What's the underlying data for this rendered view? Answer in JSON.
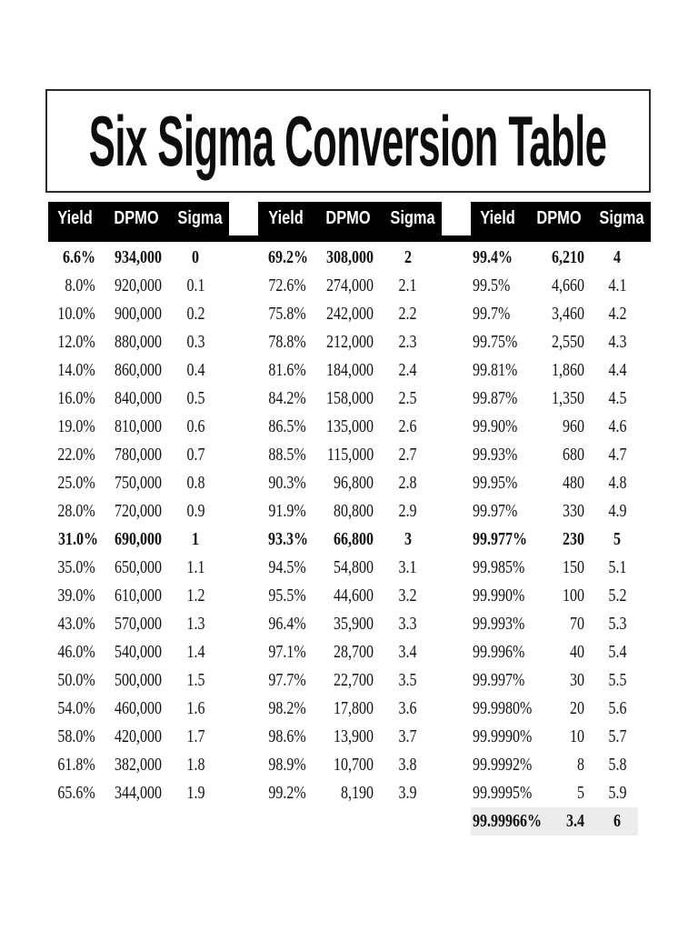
{
  "title": "Six Sigma Conversion Table",
  "colors": {
    "header_bg": "#000000",
    "header_text": "#ffffff",
    "highlight_row_bg": "#ececec",
    "body_text": "#121212"
  },
  "table": {
    "headers": [
      "Yield",
      "DPMO",
      "Sigma"
    ],
    "groups": [
      {
        "name": "sigma-0-to-1.9",
        "rows": [
          {
            "y": "6.6%",
            "d": "934,000",
            "s": "0",
            "b": true
          },
          {
            "y": "8.0%",
            "d": "920,000",
            "s": "0.1"
          },
          {
            "y": "10.0%",
            "d": "900,000",
            "s": "0.2"
          },
          {
            "y": "12.0%",
            "d": "880,000",
            "s": "0.3"
          },
          {
            "y": "14.0%",
            "d": "860,000",
            "s": "0.4"
          },
          {
            "y": "16.0%",
            "d": "840,000",
            "s": "0.5"
          },
          {
            "y": "19.0%",
            "d": "810,000",
            "s": "0.6"
          },
          {
            "y": "22.0%",
            "d": "780,000",
            "s": "0.7"
          },
          {
            "y": "25.0%",
            "d": "750,000",
            "s": "0.8"
          },
          {
            "y": "28.0%",
            "d": "720,000",
            "s": "0.9"
          },
          {
            "y": "31.0%",
            "d": "690,000",
            "s": "1",
            "b": true
          },
          {
            "y": "35.0%",
            "d": "650,000",
            "s": "1.1"
          },
          {
            "y": "39.0%",
            "d": "610,000",
            "s": "1.2"
          },
          {
            "y": "43.0%",
            "d": "570,000",
            "s": "1.3"
          },
          {
            "y": "46.0%",
            "d": "540,000",
            "s": "1.4"
          },
          {
            "y": "50.0%",
            "d": "500,000",
            "s": "1.5"
          },
          {
            "y": "54.0%",
            "d": "460,000",
            "s": "1.6"
          },
          {
            "y": "58.0%",
            "d": "420,000",
            "s": "1.7"
          },
          {
            "y": "61.8%",
            "d": "382,000",
            "s": "1.8"
          },
          {
            "y": "65.6%",
            "d": "344,000",
            "s": "1.9"
          }
        ]
      },
      {
        "name": "sigma-2-to-3.9",
        "rows": [
          {
            "y": "69.2%",
            "d": "308,000",
            "s": "2",
            "b": true
          },
          {
            "y": "72.6%",
            "d": "274,000",
            "s": "2.1"
          },
          {
            "y": "75.8%",
            "d": "242,000",
            "s": "2.2"
          },
          {
            "y": "78.8%",
            "d": "212,000",
            "s": "2.3"
          },
          {
            "y": "81.6%",
            "d": "184,000",
            "s": "2.4"
          },
          {
            "y": "84.2%",
            "d": "158,000",
            "s": "2.5"
          },
          {
            "y": "86.5%",
            "d": "135,000",
            "s": "2.6"
          },
          {
            "y": "88.5%",
            "d": "115,000",
            "s": "2.7"
          },
          {
            "y": "90.3%",
            "d": "96,800",
            "s": "2.8"
          },
          {
            "y": "91.9%",
            "d": "80,800",
            "s": "2.9"
          },
          {
            "y": "93.3%",
            "d": "66,800",
            "s": "3",
            "b": true
          },
          {
            "y": "94.5%",
            "d": "54,800",
            "s": "3.1"
          },
          {
            "y": "95.5%",
            "d": "44,600",
            "s": "3.2"
          },
          {
            "y": "96.4%",
            "d": "35,900",
            "s": "3.3"
          },
          {
            "y": "97.1%",
            "d": "28,700",
            "s": "3.4"
          },
          {
            "y": "97.7%",
            "d": "22,700",
            "s": "3.5"
          },
          {
            "y": "98.2%",
            "d": "17,800",
            "s": "3.6"
          },
          {
            "y": "98.6%",
            "d": "13,900",
            "s": "3.7"
          },
          {
            "y": "98.9%",
            "d": "10,700",
            "s": "3.8"
          },
          {
            "y": "99.2%",
            "d": "8,190",
            "s": "3.9"
          }
        ]
      },
      {
        "name": "sigma-4-to-6",
        "rows": [
          {
            "y": "99.4%",
            "d": "6,210",
            "s": "4",
            "b": true
          },
          {
            "y": "99.5%",
            "d": "4,660",
            "s": "4.1"
          },
          {
            "y": "99.7%",
            "d": "3,460",
            "s": "4.2"
          },
          {
            "y": "99.75%",
            "d": "2,550",
            "s": "4.3"
          },
          {
            "y": "99.81%",
            "d": "1,860",
            "s": "4.4"
          },
          {
            "y": "99.87%",
            "d": "1,350",
            "s": "4.5"
          },
          {
            "y": "99.90%",
            "d": "960",
            "s": "4.6"
          },
          {
            "y": "99.93%",
            "d": "680",
            "s": "4.7"
          },
          {
            "y": "99.95%",
            "d": "480",
            "s": "4.8"
          },
          {
            "y": "99.97%",
            "d": "330",
            "s": "4.9"
          },
          {
            "y": "99.977%",
            "d": "230",
            "s": "5",
            "b": true
          },
          {
            "y": "99.985%",
            "d": "150",
            "s": "5.1"
          },
          {
            "y": "99.990%",
            "d": "100",
            "s": "5.2"
          },
          {
            "y": "99.993%",
            "d": "70",
            "s": "5.3"
          },
          {
            "y": "99.996%",
            "d": "40",
            "s": "5.4"
          },
          {
            "y": "99.997%",
            "d": "30",
            "s": "5.5"
          },
          {
            "y": "99.9980%",
            "d": "20",
            "s": "5.6"
          },
          {
            "y": "99.9990%",
            "d": "10",
            "s": "5.7"
          },
          {
            "y": "99.9992%",
            "d": "8",
            "s": "5.8"
          },
          {
            "y": "99.9995%",
            "d": "5",
            "s": "5.9"
          },
          {
            "y": "99.99966%",
            "d": "3.4",
            "s": "6",
            "b": true,
            "h": true
          }
        ]
      }
    ]
  }
}
